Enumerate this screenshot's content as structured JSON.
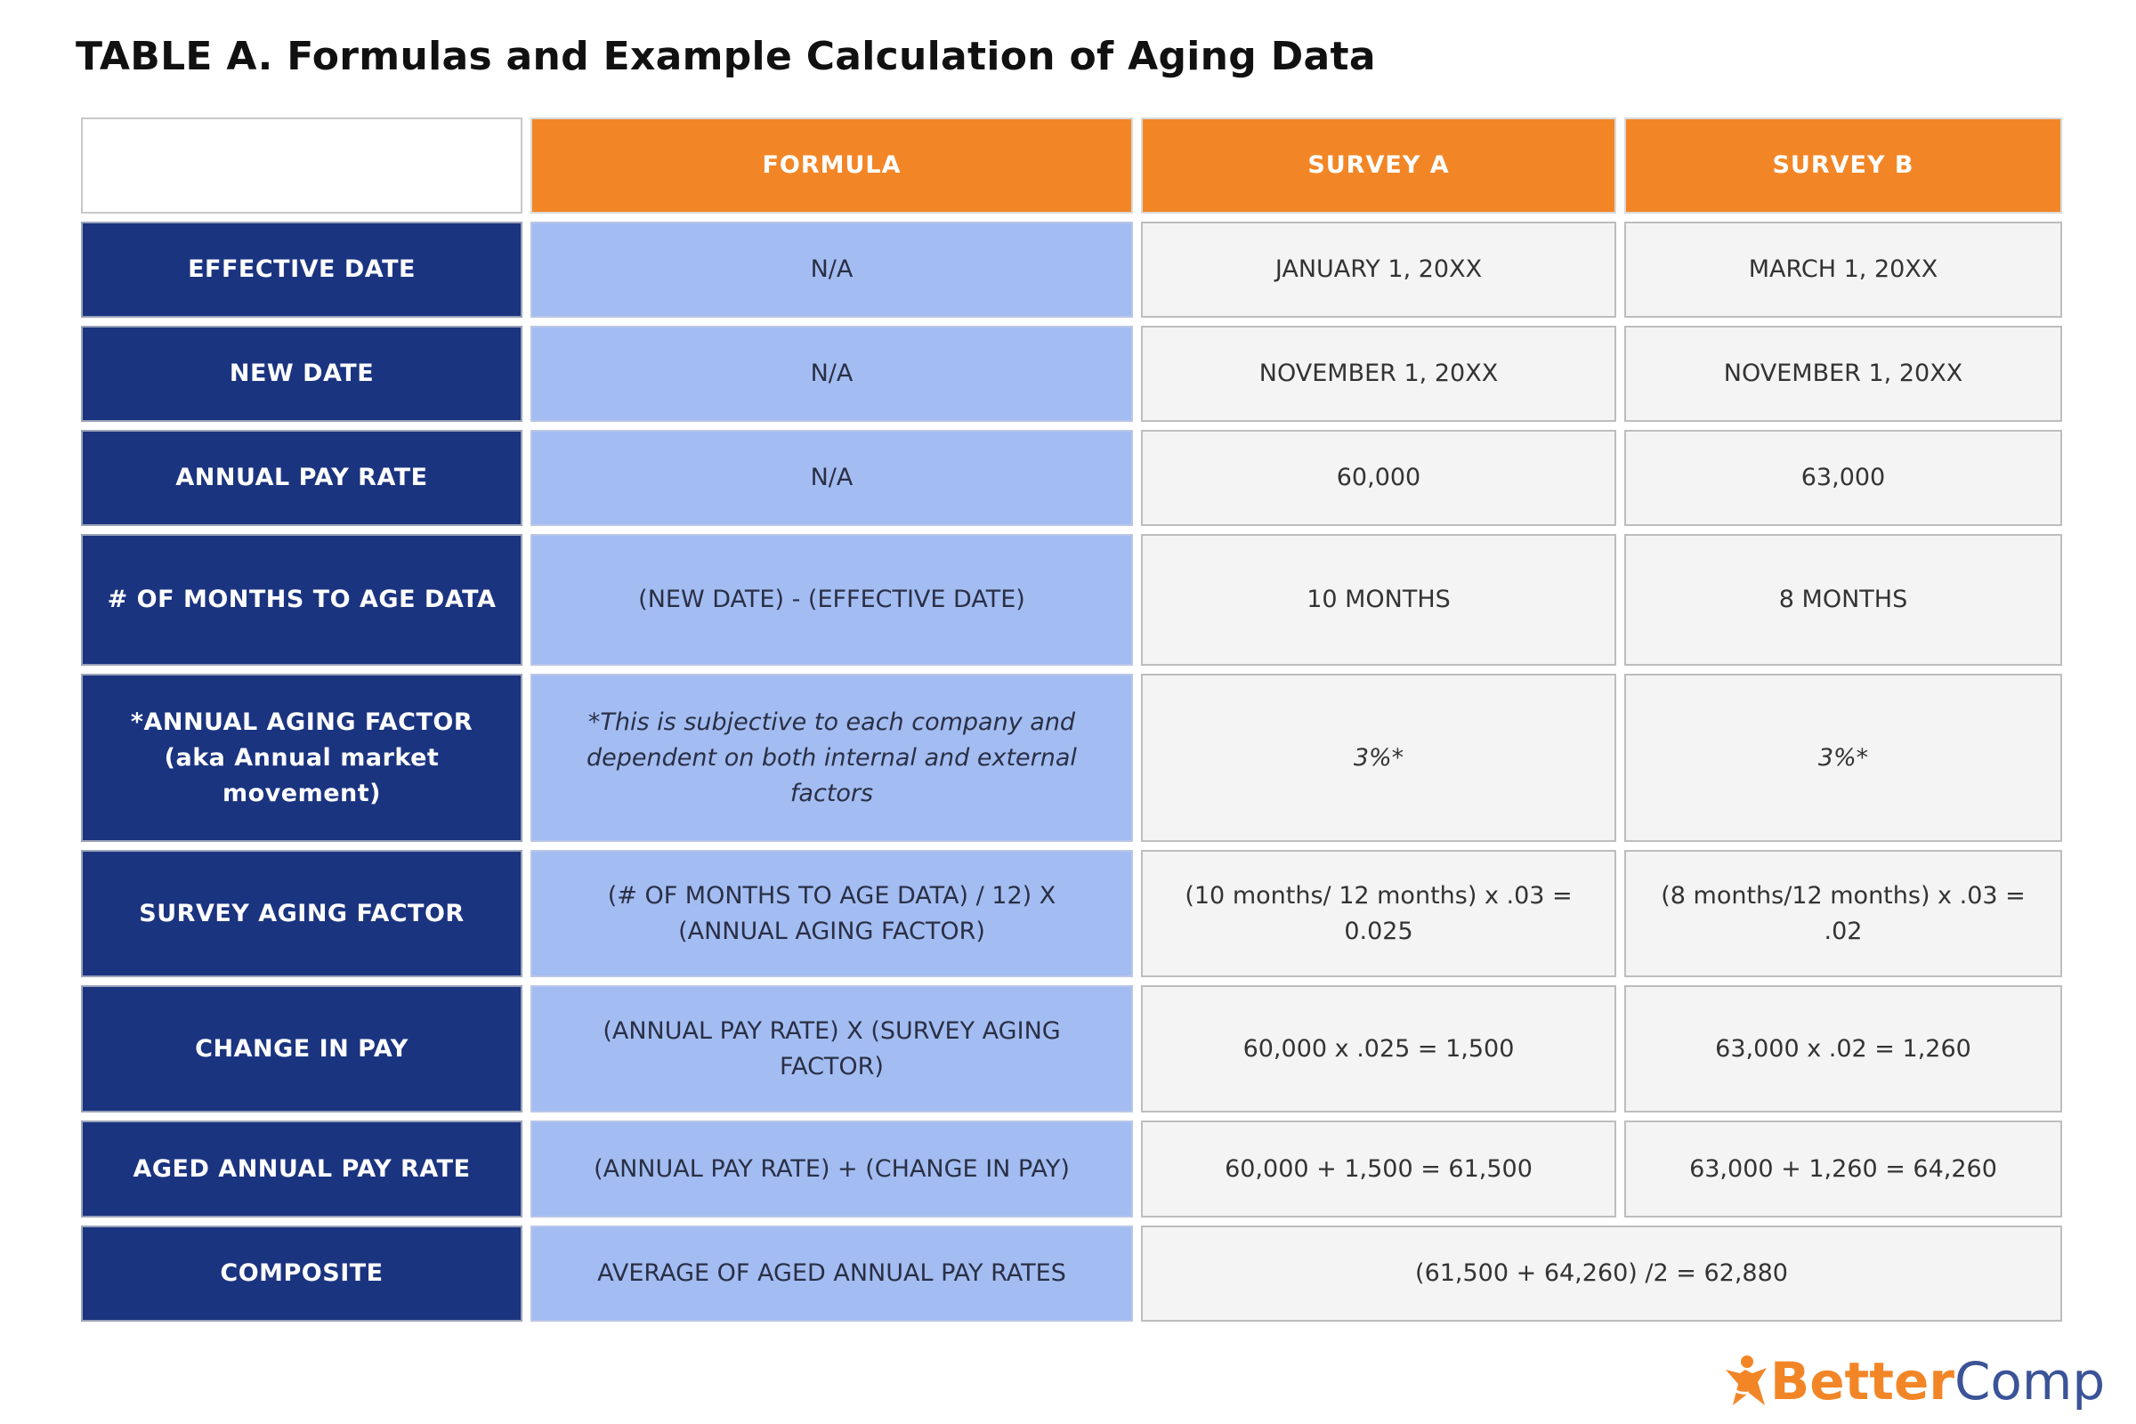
{
  "title": "TABLE A. Formulas and Example Calculation of Aging Data",
  "headers": [
    "",
    "FORMULA",
    "SURVEY A",
    "SURVEY B"
  ],
  "rows": [
    {
      "label": "EFFECTIVE DATE",
      "formula": "N/A",
      "a": "JANUARY 1, 20XX",
      "b": "MARCH 1, 20XX"
    },
    {
      "label": "NEW DATE",
      "formula": "N/A",
      "a": "NOVEMBER 1, 20XX",
      "b": "NOVEMBER 1, 20XX"
    },
    {
      "label": "ANNUAL PAY RATE",
      "formula": "N/A",
      "a": "60,000",
      "b": "63,000"
    },
    {
      "label": "# OF MONTHS TO AGE DATA",
      "formula": "(NEW DATE) - (EFFECTIVE DATE)",
      "a": "10 MONTHS",
      "b": "8 MONTHS"
    },
    {
      "label": "*ANNUAL AGING FACTOR (aka Annual market movement)",
      "formula": "*This is subjective to each company and dependent on both internal and external factors",
      "a": "3%*",
      "b": "3%*"
    },
    {
      "label": "SURVEY AGING FACTOR",
      "formula": "(# OF MONTHS TO AGE DATA) / 12)  X (ANNUAL AGING FACTOR)",
      "a": "(10 months/ 12 months) x .03 = 0.025",
      "b": "(8 months/12 months) x .03 = .02"
    },
    {
      "label": "CHANGE IN PAY",
      "formula": "(ANNUAL PAY RATE) X (SURVEY AGING FACTOR)",
      "a": "60,000 x .025 = 1,500",
      "b": "63,000 x .02 = 1,260"
    },
    {
      "label": "AGED ANNUAL PAY RATE",
      "formula": "(ANNUAL PAY RATE) + (CHANGE IN PAY)",
      "a": "60,000 + 1,500 = 61,500",
      "b": "63,000 + 1,260 = 64,260"
    },
    {
      "label": "COMPOSITE",
      "formula": "AVERAGE OF AGED ANNUAL PAY RATES",
      "combined": "(61,500 + 64,260) /2 = 62,880"
    }
  ],
  "logo": {
    "part1": "Better",
    "part2": "Comp",
    "icon": "star-person-icon"
  },
  "colors": {
    "header": "#F28627",
    "label": "#1B3480",
    "formula": "#A3BDF2",
    "value": "#F4F4F4",
    "logo_blue": "#3B5397"
  }
}
